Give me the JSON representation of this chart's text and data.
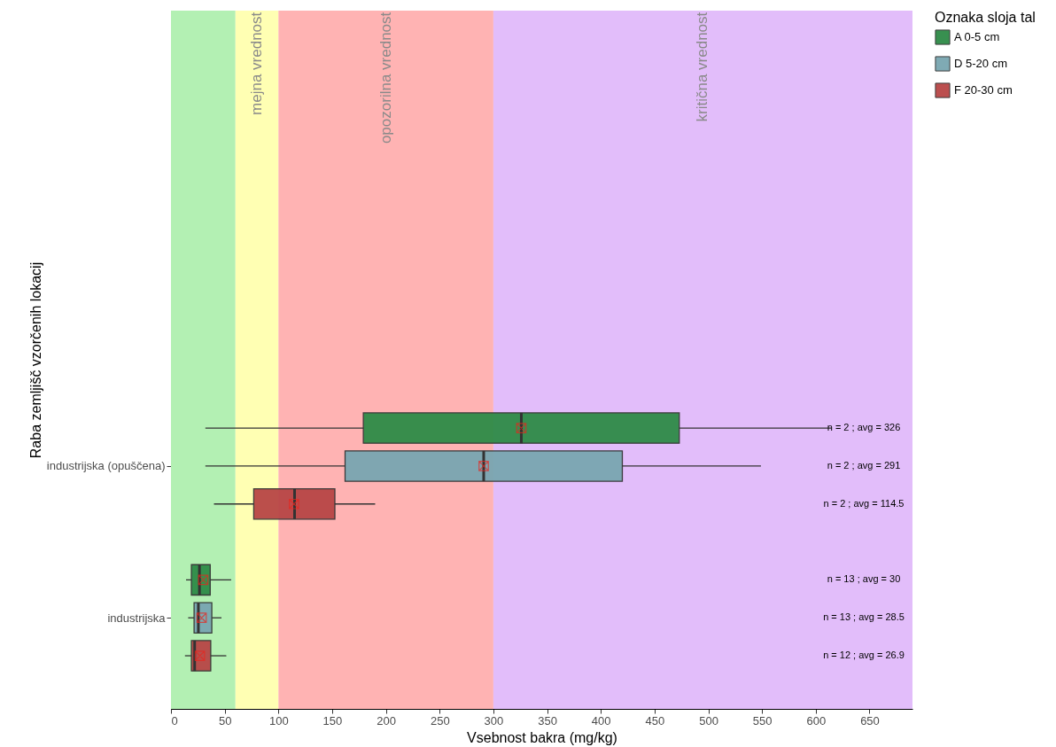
{
  "chart_data": {
    "type": "box",
    "orientation": "horizontal",
    "xlabel": "Vsebnost bakra (mg/kg)",
    "ylabel": "Raba zemljišč vzorčenih lokacij",
    "legend_title": "Oznaka sloja tal",
    "legend": "right",
    "grid": false,
    "categories": [
      "industrijska (opuščena)",
      "industrijska"
    ],
    "xlim": [
      0,
      690
    ],
    "xticks": [
      0,
      50,
      100,
      150,
      200,
      250,
      300,
      350,
      400,
      450,
      500,
      550,
      600,
      650
    ],
    "series": [
      {
        "name": "A 0-5 cm",
        "color": "#2e8b47",
        "boxes": [
          {
            "low": 32,
            "q1": 179,
            "median": 326,
            "q3": 473,
            "high": 615,
            "mean": 326
          },
          {
            "low": 14,
            "q1": 19,
            "median": 26.5,
            "q3": 36.5,
            "high": 56,
            "mean": 30
          }
        ]
      },
      {
        "name": "D 5-20 cm",
        "color": "#79a6b1",
        "boxes": [
          {
            "low": 32,
            "q1": 162,
            "median": 291,
            "q3": 420,
            "high": 549,
            "mean": 291
          },
          {
            "low": 16,
            "q1": 21.5,
            "median": 25.5,
            "q3": 38,
            "high": 47,
            "mean": 28.5
          }
        ]
      },
      {
        "name": "F 20-30 cm",
        "color": "#b84646",
        "boxes": [
          {
            "low": 40,
            "q1": 77,
            "median": 115,
            "q3": 152.5,
            "high": 190,
            "mean": 114.5
          },
          {
            "low": 13,
            "q1": 19,
            "median": 22,
            "q3": 37,
            "high": 51.5,
            "mean": 26.9
          }
        ]
      }
    ],
    "bands": [
      {
        "axis": "x",
        "from": 0,
        "to": 60,
        "color": "#b3f0b3"
      },
      {
        "axis": "x",
        "from": 60,
        "to": 100,
        "label": "mejna vrednost",
        "color": "#ffffb3"
      },
      {
        "axis": "x",
        "from": 100,
        "to": 300,
        "label": "opozorilna vrednost",
        "color": "#ffb3b3"
      },
      {
        "axis": "x",
        "from": 300,
        "to": 690,
        "label": "kritična vrednost",
        "color": "#e2bdfa"
      }
    ],
    "annotations": [
      "n = 2 ; avg = 326",
      "n = 2 ; avg = 291",
      "n = 2 ; avg = 114.5",
      "n = 13 ; avg = 30",
      "n = 13 ; avg = 28.5",
      "n = 12 ; avg = 26.9"
    ]
  }
}
